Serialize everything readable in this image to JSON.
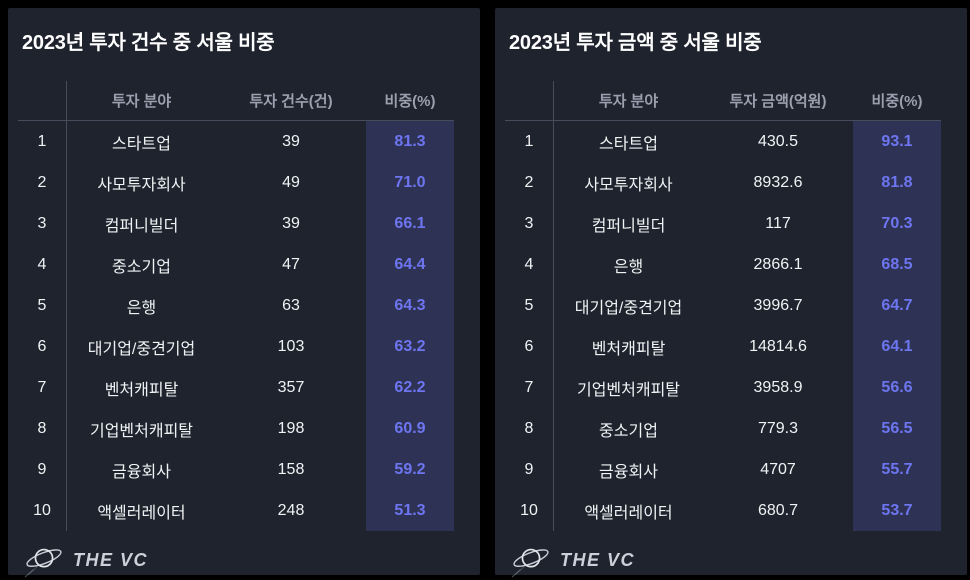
{
  "chart_data": [
    {
      "type": "table",
      "title": "2023년 투자 건수 중 서울 비중",
      "columns": {
        "rank": "",
        "field": "투자 분야",
        "value": "투자 건수(건)",
        "share": "비중(%)"
      },
      "rows": [
        {
          "rank": "1",
          "field": "스타트업",
          "value": "39",
          "share": "81.3"
        },
        {
          "rank": "2",
          "field": "사모투자회사",
          "value": "49",
          "share": "71.0"
        },
        {
          "rank": "3",
          "field": "컴퍼니빌더",
          "value": "39",
          "share": "66.1"
        },
        {
          "rank": "4",
          "field": "중소기업",
          "value": "47",
          "share": "64.4"
        },
        {
          "rank": "5",
          "field": "은행",
          "value": "63",
          "share": "64.3"
        },
        {
          "rank": "6",
          "field": "대기업/중견기업",
          "value": "103",
          "share": "63.2"
        },
        {
          "rank": "7",
          "field": "벤처캐피탈",
          "value": "357",
          "share": "62.2"
        },
        {
          "rank": "8",
          "field": "기업벤처캐피탈",
          "value": "198",
          "share": "60.9"
        },
        {
          "rank": "9",
          "field": "금융회사",
          "value": "158",
          "share": "59.2"
        },
        {
          "rank": "10",
          "field": "액셀러레이터",
          "value": "248",
          "share": "51.3"
        }
      ]
    },
    {
      "type": "table",
      "title": "2023년 투자 금액 중 서울 비중",
      "columns": {
        "rank": "",
        "field": "투자 분야",
        "value": "투자 금액(억원)",
        "share": "비중(%)"
      },
      "rows": [
        {
          "rank": "1",
          "field": "스타트업",
          "value": "430.5",
          "share": "93.1"
        },
        {
          "rank": "2",
          "field": "사모투자회사",
          "value": "8932.6",
          "share": "81.8"
        },
        {
          "rank": "3",
          "field": "컴퍼니빌더",
          "value": "117",
          "share": "70.3"
        },
        {
          "rank": "4",
          "field": "은행",
          "value": "2866.1",
          "share": "68.5"
        },
        {
          "rank": "5",
          "field": "대기업/중견기업",
          "value": "3996.7",
          "share": "64.7"
        },
        {
          "rank": "6",
          "field": "벤처캐피탈",
          "value": "14814.6",
          "share": "64.1"
        },
        {
          "rank": "7",
          "field": "기업벤처캐피탈",
          "value": "3958.9",
          "share": "56.6"
        },
        {
          "rank": "8",
          "field": "중소기업",
          "value": "779.3",
          "share": "56.5"
        },
        {
          "rank": "9",
          "field": "금융회사",
          "value": "4707",
          "share": "55.7"
        },
        {
          "rank": "10",
          "field": "액셀러레이터",
          "value": "680.7",
          "share": "53.7"
        }
      ]
    }
  ],
  "logo": {
    "text": "THE VC"
  },
  "colors": {
    "background": "#000000",
    "panel_bg": "#1e232e",
    "highlight_bg": "#2e3355",
    "highlight_text": "#6d75f0",
    "header_text": "#9aa0ae",
    "body_text": "#f1f2f4",
    "title_text": "#ffffff",
    "divider": "#454c5b"
  }
}
